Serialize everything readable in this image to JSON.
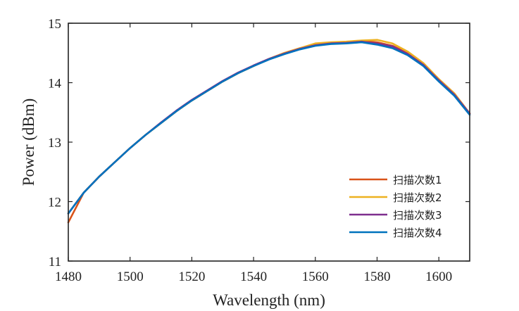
{
  "chart_data": {
    "type": "line",
    "xlabel": "Wavelength (nm)",
    "ylabel": "Power (dBm)",
    "xlim": [
      1480,
      1610
    ],
    "ylim": [
      11,
      15
    ],
    "xticks": [
      1480,
      1500,
      1520,
      1540,
      1560,
      1580,
      1600
    ],
    "yticks": [
      11,
      12,
      13,
      14,
      15
    ],
    "grid": false,
    "legend_position": "bottom-right",
    "x": [
      1480,
      1485,
      1490,
      1495,
      1500,
      1505,
      1510,
      1515,
      1520,
      1525,
      1530,
      1535,
      1540,
      1545,
      1550,
      1555,
      1560,
      1565,
      1570,
      1575,
      1580,
      1585,
      1590,
      1595,
      1600,
      1605,
      1610
    ],
    "series": [
      {
        "name": "扫描次数1",
        "color": "#d95319",
        "values": [
          11.65,
          12.15,
          12.42,
          12.66,
          12.9,
          13.12,
          13.32,
          13.52,
          13.7,
          13.86,
          14.02,
          14.16,
          14.28,
          14.4,
          14.5,
          14.58,
          14.64,
          14.67,
          14.68,
          14.7,
          14.68,
          14.62,
          14.5,
          14.32,
          14.06,
          13.82,
          13.48
        ]
      },
      {
        "name": "扫描次数2",
        "color": "#edb120",
        "values": [
          11.8,
          12.15,
          12.42,
          12.66,
          12.9,
          13.12,
          13.32,
          13.52,
          13.7,
          13.86,
          14.02,
          14.16,
          14.28,
          14.4,
          14.5,
          14.58,
          14.66,
          14.68,
          14.69,
          14.71,
          14.72,
          14.66,
          14.52,
          14.33,
          14.06,
          13.82,
          13.48
        ]
      },
      {
        "name": "扫描次数3",
        "color": "#7e2f8e",
        "values": [
          11.8,
          12.15,
          12.42,
          12.66,
          12.9,
          13.12,
          13.33,
          13.53,
          13.71,
          13.87,
          14.03,
          14.17,
          14.29,
          14.4,
          14.49,
          14.57,
          14.63,
          14.66,
          14.67,
          14.69,
          14.66,
          14.61,
          14.48,
          14.3,
          14.04,
          13.8,
          13.48
        ]
      },
      {
        "name": "扫描次数4",
        "color": "#0072bd",
        "values": [
          11.8,
          12.15,
          12.42,
          12.66,
          12.9,
          13.12,
          13.32,
          13.52,
          13.7,
          13.86,
          14.02,
          14.16,
          14.28,
          14.39,
          14.48,
          14.56,
          14.62,
          14.65,
          14.66,
          14.68,
          14.64,
          14.58,
          14.46,
          14.28,
          14.02,
          13.78,
          13.46
        ]
      }
    ]
  }
}
